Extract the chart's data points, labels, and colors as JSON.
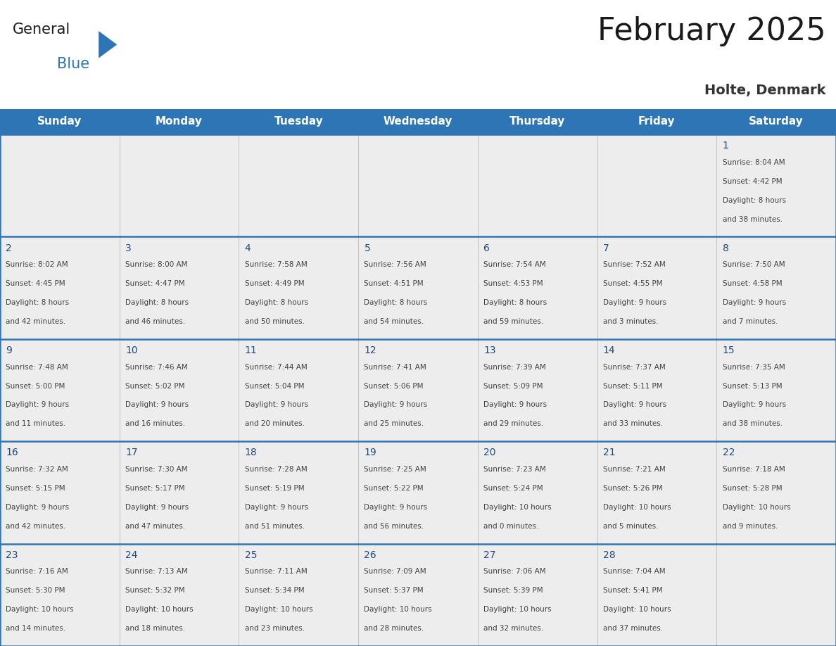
{
  "title": "February 2025",
  "subtitle": "Holte, Denmark",
  "header_bg": "#2E75B6",
  "header_text_color": "#FFFFFF",
  "header_days": [
    "Sunday",
    "Monday",
    "Tuesday",
    "Wednesday",
    "Thursday",
    "Friday",
    "Saturday"
  ],
  "cell_bg": "#EDEDED",
  "border_color": "#2E75B6",
  "title_color": "#1a1a1a",
  "subtitle_color": "#333333",
  "day_number_color": "#1F497D",
  "info_text_color": "#404040",
  "logo_general_color": "#1a1a1a",
  "logo_blue_color": "#2E75B6",
  "days_data": [
    {
      "day": 1,
      "col": 6,
      "row": 0,
      "sunrise": "8:04 AM",
      "sunset": "4:42 PM",
      "daylight_h": "8 hours",
      "daylight_m": "and 38 minutes."
    },
    {
      "day": 2,
      "col": 0,
      "row": 1,
      "sunrise": "8:02 AM",
      "sunset": "4:45 PM",
      "daylight_h": "8 hours",
      "daylight_m": "and 42 minutes."
    },
    {
      "day": 3,
      "col": 1,
      "row": 1,
      "sunrise": "8:00 AM",
      "sunset": "4:47 PM",
      "daylight_h": "8 hours",
      "daylight_m": "and 46 minutes."
    },
    {
      "day": 4,
      "col": 2,
      "row": 1,
      "sunrise": "7:58 AM",
      "sunset": "4:49 PM",
      "daylight_h": "8 hours",
      "daylight_m": "and 50 minutes."
    },
    {
      "day": 5,
      "col": 3,
      "row": 1,
      "sunrise": "7:56 AM",
      "sunset": "4:51 PM",
      "daylight_h": "8 hours",
      "daylight_m": "and 54 minutes."
    },
    {
      "day": 6,
      "col": 4,
      "row": 1,
      "sunrise": "7:54 AM",
      "sunset": "4:53 PM",
      "daylight_h": "8 hours",
      "daylight_m": "and 59 minutes."
    },
    {
      "day": 7,
      "col": 5,
      "row": 1,
      "sunrise": "7:52 AM",
      "sunset": "4:55 PM",
      "daylight_h": "9 hours",
      "daylight_m": "and 3 minutes."
    },
    {
      "day": 8,
      "col": 6,
      "row": 1,
      "sunrise": "7:50 AM",
      "sunset": "4:58 PM",
      "daylight_h": "9 hours",
      "daylight_m": "and 7 minutes."
    },
    {
      "day": 9,
      "col": 0,
      "row": 2,
      "sunrise": "7:48 AM",
      "sunset": "5:00 PM",
      "daylight_h": "9 hours",
      "daylight_m": "and 11 minutes."
    },
    {
      "day": 10,
      "col": 1,
      "row": 2,
      "sunrise": "7:46 AM",
      "sunset": "5:02 PM",
      "daylight_h": "9 hours",
      "daylight_m": "and 16 minutes."
    },
    {
      "day": 11,
      "col": 2,
      "row": 2,
      "sunrise": "7:44 AM",
      "sunset": "5:04 PM",
      "daylight_h": "9 hours",
      "daylight_m": "and 20 minutes."
    },
    {
      "day": 12,
      "col": 3,
      "row": 2,
      "sunrise": "7:41 AM",
      "sunset": "5:06 PM",
      "daylight_h": "9 hours",
      "daylight_m": "and 25 minutes."
    },
    {
      "day": 13,
      "col": 4,
      "row": 2,
      "sunrise": "7:39 AM",
      "sunset": "5:09 PM",
      "daylight_h": "9 hours",
      "daylight_m": "and 29 minutes."
    },
    {
      "day": 14,
      "col": 5,
      "row": 2,
      "sunrise": "7:37 AM",
      "sunset": "5:11 PM",
      "daylight_h": "9 hours",
      "daylight_m": "and 33 minutes."
    },
    {
      "day": 15,
      "col": 6,
      "row": 2,
      "sunrise": "7:35 AM",
      "sunset": "5:13 PM",
      "daylight_h": "9 hours",
      "daylight_m": "and 38 minutes."
    },
    {
      "day": 16,
      "col": 0,
      "row": 3,
      "sunrise": "7:32 AM",
      "sunset": "5:15 PM",
      "daylight_h": "9 hours",
      "daylight_m": "and 42 minutes."
    },
    {
      "day": 17,
      "col": 1,
      "row": 3,
      "sunrise": "7:30 AM",
      "sunset": "5:17 PM",
      "daylight_h": "9 hours",
      "daylight_m": "and 47 minutes."
    },
    {
      "day": 18,
      "col": 2,
      "row": 3,
      "sunrise": "7:28 AM",
      "sunset": "5:19 PM",
      "daylight_h": "9 hours",
      "daylight_m": "and 51 minutes."
    },
    {
      "day": 19,
      "col": 3,
      "row": 3,
      "sunrise": "7:25 AM",
      "sunset": "5:22 PM",
      "daylight_h": "9 hours",
      "daylight_m": "and 56 minutes."
    },
    {
      "day": 20,
      "col": 4,
      "row": 3,
      "sunrise": "7:23 AM",
      "sunset": "5:24 PM",
      "daylight_h": "10 hours",
      "daylight_m": "and 0 minutes."
    },
    {
      "day": 21,
      "col": 5,
      "row": 3,
      "sunrise": "7:21 AM",
      "sunset": "5:26 PM",
      "daylight_h": "10 hours",
      "daylight_m": "and 5 minutes."
    },
    {
      "day": 22,
      "col": 6,
      "row": 3,
      "sunrise": "7:18 AM",
      "sunset": "5:28 PM",
      "daylight_h": "10 hours",
      "daylight_m": "and 9 minutes."
    },
    {
      "day": 23,
      "col": 0,
      "row": 4,
      "sunrise": "7:16 AM",
      "sunset": "5:30 PM",
      "daylight_h": "10 hours",
      "daylight_m": "and 14 minutes."
    },
    {
      "day": 24,
      "col": 1,
      "row": 4,
      "sunrise": "7:13 AM",
      "sunset": "5:32 PM",
      "daylight_h": "10 hours",
      "daylight_m": "and 18 minutes."
    },
    {
      "day": 25,
      "col": 2,
      "row": 4,
      "sunrise": "7:11 AM",
      "sunset": "5:34 PM",
      "daylight_h": "10 hours",
      "daylight_m": "and 23 minutes."
    },
    {
      "day": 26,
      "col": 3,
      "row": 4,
      "sunrise": "7:09 AM",
      "sunset": "5:37 PM",
      "daylight_h": "10 hours",
      "daylight_m": "and 28 minutes."
    },
    {
      "day": 27,
      "col": 4,
      "row": 4,
      "sunrise": "7:06 AM",
      "sunset": "5:39 PM",
      "daylight_h": "10 hours",
      "daylight_m": "and 32 minutes."
    },
    {
      "day": 28,
      "col": 5,
      "row": 4,
      "sunrise": "7:04 AM",
      "sunset": "5:41 PM",
      "daylight_h": "10 hours",
      "daylight_m": "and 37 minutes."
    }
  ]
}
